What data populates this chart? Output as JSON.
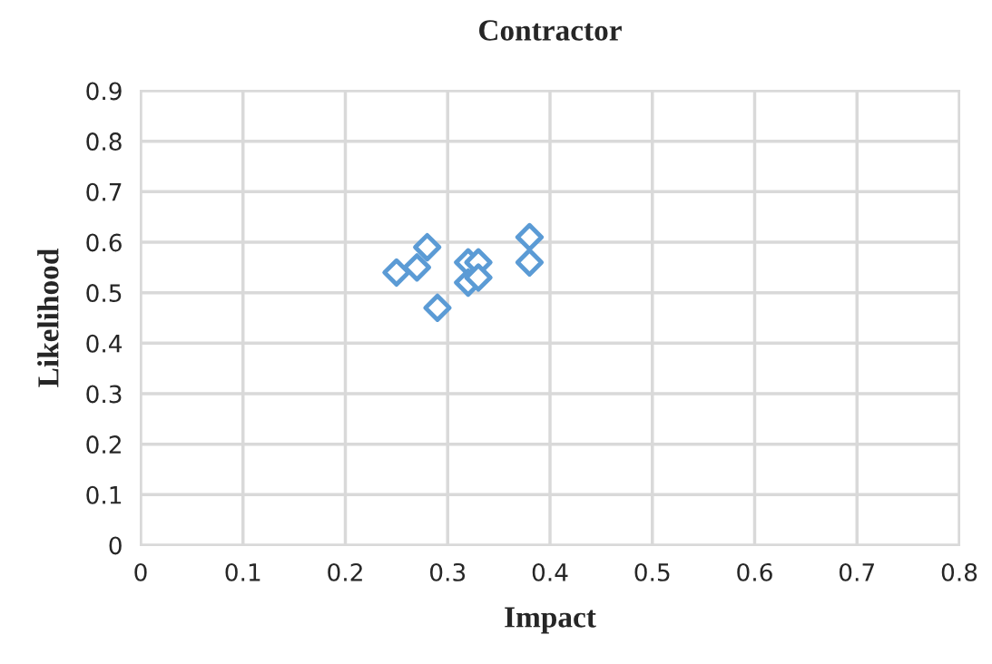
{
  "chart_data": {
    "type": "scatter",
    "title": "Contractor",
    "xlabel": "Impact",
    "ylabel": "Likelihood",
    "x": [
      0.25,
      0.27,
      0.28,
      0.29,
      0.32,
      0.33,
      0.32,
      0.33,
      0.38,
      0.38
    ],
    "series": [
      {
        "color": "#5b9bd5",
        "values": [
          0.54,
          0.55,
          0.59,
          0.47,
          0.56,
          0.56,
          0.52,
          0.53,
          0.61,
          0.56
        ]
      }
    ],
    "xlim": [
      0,
      0.8
    ],
    "xticks": [
      {
        "value": 0,
        "label": "0"
      },
      0.1,
      0.2,
      0.3,
      0.4,
      0.5,
      0.6,
      0.7,
      0.8
    ],
    "ylim": [
      0,
      0.9
    ],
    "yticks": [
      {
        "value": 0,
        "label": "0"
      },
      0.1,
      0.2,
      0.3,
      0.4,
      0.5,
      0.6,
      0.7,
      0.8,
      0.9
    ],
    "grid": true,
    "marker": "diamond",
    "legend": false
  }
}
